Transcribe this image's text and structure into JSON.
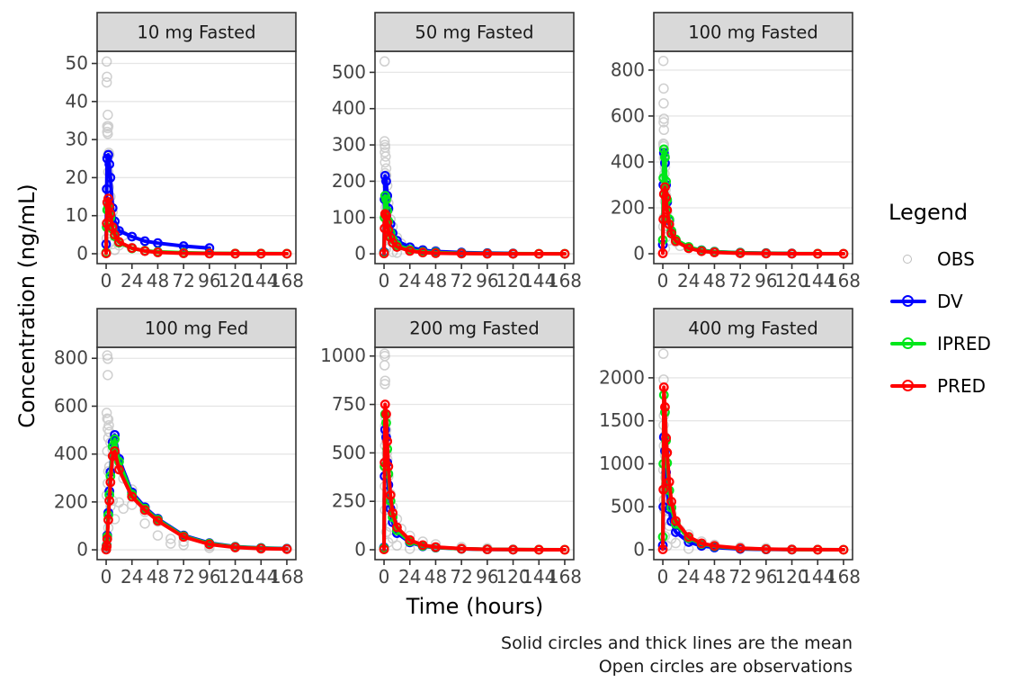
{
  "figure": {
    "ylabel": "Concentration (ng/mL)",
    "xlabel": "Time (hours)",
    "caption": {
      "line1": "Solid circles and thick lines are the mean",
      "line2": "Open circles are observations"
    }
  },
  "legend": {
    "title": "Legend",
    "items": [
      {
        "label": "OBS",
        "type": "point",
        "color": "#bdbdbd"
      },
      {
        "label": "DV",
        "type": "line-point",
        "color": "#0000ff"
      },
      {
        "label": "IPRED",
        "type": "line-point",
        "color": "#00e61a"
      },
      {
        "label": "PRED",
        "type": "line-point",
        "color": "#ff0000"
      }
    ]
  },
  "colors": {
    "obs": "#a0a0a0",
    "dv": "#0000ff",
    "ipred": "#00e61a",
    "pred": "#ff0000",
    "strip_fill": "#d9d9d9",
    "panel_border": "#333333",
    "gridline": "#e6e6e6",
    "tick_text": "#444444"
  },
  "chart_data": {
    "type": "line",
    "title": "",
    "xlabel": "Time (hours)",
    "ylabel": "Concentration (ng/mL)",
    "x_ticks": [
      0,
      24,
      48,
      72,
      96,
      120,
      144,
      168
    ],
    "xlim": [
      -8.4,
      176.4
    ],
    "grid": "horizontal-major-only",
    "legend_position": "right",
    "time": [
      0,
      0.5,
      1,
      2,
      3,
      4,
      6,
      8,
      12,
      24,
      36,
      48,
      72,
      96,
      120,
      144,
      168
    ],
    "series_names": [
      "DV",
      "IPRED",
      "PRED"
    ],
    "panels": [
      {
        "label": "10 mg Fasted",
        "y_ticks": [
          0,
          10,
          20,
          30,
          40,
          50
        ],
        "ylim": [
          -2.6,
          53.2
        ],
        "series": {
          "DV": [
            2.5,
            17,
            25,
            26,
            23.5,
            20,
            12,
            8.5,
            6,
            4.5,
            3.3,
            2.8,
            2,
            1.5,
            null,
            null,
            null
          ],
          "IPRED": [
            0.3,
            7,
            11.5,
            12.5,
            11,
            9.5,
            6.5,
            4.6,
            2.9,
            1.4,
            0.8,
            0.5,
            0.25,
            0.12,
            0.06,
            0.04,
            0.02
          ],
          "PRED": [
            0.1,
            8,
            13.5,
            14.5,
            12.5,
            10.5,
            7,
            5,
            3.1,
            1.5,
            0.7,
            0.35,
            0.12,
            0.05,
            0.02,
            0.01,
            0.005
          ]
        },
        "obs": [
          [
            0.5,
            50.5
          ],
          [
            0.5,
            45
          ],
          [
            0.75,
            46.5
          ],
          [
            1.5,
            36.5
          ],
          [
            1,
            33.5
          ],
          [
            1.5,
            33
          ],
          [
            2,
            33.5
          ],
          [
            1,
            32
          ],
          [
            1.5,
            31.5
          ],
          [
            2.5,
            26.5
          ],
          [
            1,
            25.5
          ],
          [
            3,
            26
          ],
          [
            2,
            21.5
          ],
          [
            2.5,
            17.5
          ],
          [
            4,
            15
          ],
          [
            3,
            13.5
          ],
          [
            6,
            11
          ],
          [
            4,
            10
          ],
          [
            8,
            6.5
          ],
          [
            2,
            8.5
          ],
          [
            1,
            7.5
          ],
          [
            0.5,
            4
          ],
          [
            6,
            2.5
          ],
          [
            12,
            2.2
          ],
          [
            16,
            4.8
          ],
          [
            24,
            1.5
          ],
          [
            8,
            1
          ],
          [
            3,
            3
          ]
        ]
      },
      {
        "label": "50 mg Fasted",
        "y_ticks": [
          0,
          100,
          200,
          300,
          400,
          500
        ],
        "ylim": [
          -27,
          558
        ],
        "series": {
          "DV": [
            5,
            150,
            215,
            200,
            160,
            125,
            82,
            57,
            36,
            18,
            10,
            6.5,
            3.5,
            2,
            1.2,
            null,
            null
          ],
          "IPRED": [
            3,
            100,
            160,
            150,
            118,
            90,
            58,
            40,
            24,
            11,
            5.5,
            3.5,
            1.6,
            0.8,
            0.4,
            0.2,
            0.1
          ],
          "PRED": [
            1,
            70,
            110,
            105,
            86,
            66,
            45,
            31,
            19,
            8,
            3.5,
            1.8,
            0.7,
            0.25,
            0.1,
            0.04,
            0.02
          ]
        },
        "obs": [
          [
            0.5,
            530
          ],
          [
            0.5,
            310
          ],
          [
            0.75,
            300
          ],
          [
            1,
            293
          ],
          [
            0.75,
            280
          ],
          [
            1.5,
            268
          ],
          [
            1,
            252
          ],
          [
            2,
            235
          ],
          [
            1,
            222
          ],
          [
            2,
            216
          ],
          [
            1.5,
            205
          ],
          [
            3,
            188
          ],
          [
            2.5,
            150
          ],
          [
            4,
            140
          ],
          [
            1.5,
            128
          ],
          [
            4,
            122
          ],
          [
            6,
            95
          ],
          [
            8,
            75
          ],
          [
            3,
            68
          ],
          [
            12,
            45
          ],
          [
            6,
            38
          ],
          [
            16,
            28
          ],
          [
            24,
            18
          ],
          [
            2,
            14
          ],
          [
            36,
            10
          ],
          [
            48,
            8
          ],
          [
            8,
            5
          ],
          [
            12,
            3
          ],
          [
            72,
            2
          ]
        ]
      },
      {
        "label": "100 mg Fasted",
        "y_ticks": [
          0,
          200,
          400,
          600,
          800
        ],
        "ylim": [
          -43,
          882
        ],
        "series": {
          "DV": [
            40,
            300,
            440,
            395,
            300,
            225,
            145,
            98,
            60,
            28,
            15,
            9,
            4.5,
            2.5,
            1.5,
            null,
            null
          ],
          "IPRED": [
            60,
            330,
            455,
            420,
            315,
            235,
            150,
            100,
            62,
            30,
            14,
            8.5,
            4,
            2,
            1,
            0.5,
            0.25
          ],
          "PRED": [
            2,
            150,
            260,
            290,
            245,
            190,
            128,
            88,
            55,
            24,
            11,
            6,
            2.2,
            0.8,
            0.3,
            0.12,
            0.05
          ]
        },
        "obs": [
          [
            0.5,
            840
          ],
          [
            0.75,
            720
          ],
          [
            0.75,
            655
          ],
          [
            1,
            588
          ],
          [
            0.75,
            573
          ],
          [
            1,
            540
          ],
          [
            0.5,
            480
          ],
          [
            1,
            476
          ],
          [
            0.75,
            468
          ],
          [
            1.5,
            430
          ],
          [
            1,
            418
          ],
          [
            2,
            378
          ],
          [
            1.5,
            348
          ],
          [
            2.5,
            278
          ],
          [
            3,
            252
          ],
          [
            2,
            228
          ],
          [
            4,
            182
          ],
          [
            1,
            158
          ],
          [
            6,
            148
          ],
          [
            0.5,
            118
          ],
          [
            8,
            92
          ],
          [
            3,
            72
          ],
          [
            6,
            58
          ],
          [
            12,
            52
          ],
          [
            16,
            34
          ],
          [
            24,
            26
          ],
          [
            2,
            22
          ],
          [
            36,
            14
          ],
          [
            48,
            9
          ],
          [
            72,
            5
          ],
          [
            96,
            3
          ]
        ]
      },
      {
        "label": "100 mg Fed",
        "y_ticks": [
          0,
          200,
          400,
          600,
          800
        ],
        "ylim": [
          -41,
          846
        ],
        "series": {
          "DV": [
            3,
            20,
            60,
            155,
            245,
            325,
            450,
            480,
            380,
            240,
            178,
            130,
            60,
            28,
            13,
            8,
            5
          ],
          "IPRED": [
            2,
            18,
            55,
            145,
            230,
            308,
            432,
            462,
            368,
            232,
            172,
            126,
            57,
            26,
            12,
            7,
            4
          ],
          "PRED": [
            1,
            14,
            45,
            125,
            205,
            282,
            392,
            412,
            335,
            222,
            166,
            121,
            54,
            23,
            10,
            5,
            3
          ]
        },
        "obs": [
          [
            1,
            812
          ],
          [
            1.5,
            798
          ],
          [
            1.5,
            730
          ],
          [
            0.5,
            572
          ],
          [
            1,
            548
          ],
          [
            2,
            545
          ],
          [
            2.5,
            520
          ],
          [
            1.5,
            505
          ],
          [
            3,
            492
          ],
          [
            2,
            468
          ],
          [
            4,
            448
          ],
          [
            6,
            418
          ],
          [
            1,
            412
          ],
          [
            8,
            358
          ],
          [
            3,
            348
          ],
          [
            12,
            342
          ],
          [
            2,
            328
          ],
          [
            16,
            298
          ],
          [
            1.5,
            278
          ],
          [
            24,
            252
          ],
          [
            0.5,
            228
          ],
          [
            6,
            205
          ],
          [
            12,
            198
          ],
          [
            24,
            188
          ],
          [
            4,
            182
          ],
          [
            16,
            172
          ],
          [
            36,
            158
          ],
          [
            8,
            128
          ],
          [
            48,
            118
          ],
          [
            36,
            110
          ],
          [
            2,
            92
          ],
          [
            48,
            60
          ],
          [
            60,
            46
          ],
          [
            72,
            34
          ],
          [
            60,
            26
          ],
          [
            72,
            20
          ],
          [
            96,
            16
          ],
          [
            120,
            10
          ],
          [
            96,
            8
          ],
          [
            144,
            6
          ]
        ]
      },
      {
        "label": "200 mg Fasted",
        "y_ticks": [
          0,
          250,
          500,
          750,
          1000
        ],
        "ylim": [
          -51,
          1045
        ],
        "series": {
          "DV": [
            12,
            380,
            620,
            580,
            450,
            335,
            212,
            142,
            86,
            38,
            18,
            11,
            4.5,
            2,
            1,
            null,
            null
          ],
          "IPRED": [
            8,
            430,
            700,
            655,
            520,
            392,
            252,
            168,
            100,
            43,
            20,
            12,
            5,
            2.2,
            1,
            0.5,
            0.2
          ],
          "PRED": [
            2,
            450,
            750,
            700,
            560,
            430,
            282,
            190,
            116,
            50,
            24,
            14,
            5.5,
            2,
            0.8,
            0.3,
            0.1
          ]
        },
        "obs": [
          [
            0.5,
            1012
          ],
          [
            0.75,
            1000
          ],
          [
            0.5,
            952
          ],
          [
            1,
            872
          ],
          [
            0.75,
            855
          ],
          [
            1.5,
            680
          ],
          [
            1,
            640
          ],
          [
            2,
            618
          ],
          [
            1.5,
            598
          ],
          [
            2,
            558
          ],
          [
            1,
            538
          ],
          [
            2.5,
            498
          ],
          [
            3,
            468
          ],
          [
            1.5,
            428
          ],
          [
            4,
            378
          ],
          [
            0.75,
            328
          ],
          [
            6,
            288
          ],
          [
            3,
            258
          ],
          [
            8,
            222
          ],
          [
            1,
            205
          ],
          [
            12,
            158
          ],
          [
            6,
            118
          ],
          [
            16,
            108
          ],
          [
            2,
            92
          ],
          [
            24,
            72
          ],
          [
            8,
            58
          ],
          [
            36,
            42
          ],
          [
            4,
            38
          ],
          [
            48,
            28
          ],
          [
            12,
            22
          ],
          [
            72,
            14
          ],
          [
            96,
            8
          ],
          [
            24,
            5
          ]
        ]
      },
      {
        "label": "400 mg Fasted",
        "y_ticks": [
          0,
          500,
          1000,
          1500,
          2000
        ],
        "ylim": [
          -115,
          2355
        ],
        "series": {
          "DV": [
            50,
            500,
            1310,
            1150,
            900,
            700,
            470,
            330,
            205,
            90,
            45,
            26,
            10,
            4,
            2,
            null,
            null
          ],
          "IPRED": [
            150,
            1000,
            1800,
            1600,
            1270,
            1010,
            690,
            490,
            300,
            135,
            68,
            40,
            16,
            6,
            2.5,
            1,
            0.5
          ],
          "PRED": [
            5,
            700,
            1890,
            1660,
            1300,
            1130,
            790,
            560,
            335,
            150,
            75,
            45,
            18,
            7,
            3,
            1,
            0.5
          ]
        },
        "obs": [
          [
            0.5,
            2280
          ],
          [
            0.75,
            1980
          ],
          [
            1,
            1560
          ],
          [
            0.75,
            1450
          ],
          [
            1.5,
            1320
          ],
          [
            1,
            1210
          ],
          [
            2,
            1100
          ],
          [
            1.5,
            1000
          ],
          [
            0.5,
            930
          ],
          [
            2.5,
            840
          ],
          [
            3,
            760
          ],
          [
            2,
            700
          ],
          [
            4,
            620
          ],
          [
            1,
            580
          ],
          [
            6,
            540
          ],
          [
            3,
            500
          ],
          [
            1.5,
            460
          ],
          [
            8,
            428
          ],
          [
            4,
            348
          ],
          [
            12,
            308
          ],
          [
            6,
            278
          ],
          [
            16,
            228
          ],
          [
            24,
            178
          ],
          [
            2,
            158
          ],
          [
            8,
            128
          ],
          [
            36,
            95
          ],
          [
            12,
            78
          ],
          [
            48,
            58
          ],
          [
            4,
            45
          ],
          [
            72,
            30
          ],
          [
            96,
            18
          ],
          [
            24,
            12
          ]
        ]
      }
    ]
  }
}
